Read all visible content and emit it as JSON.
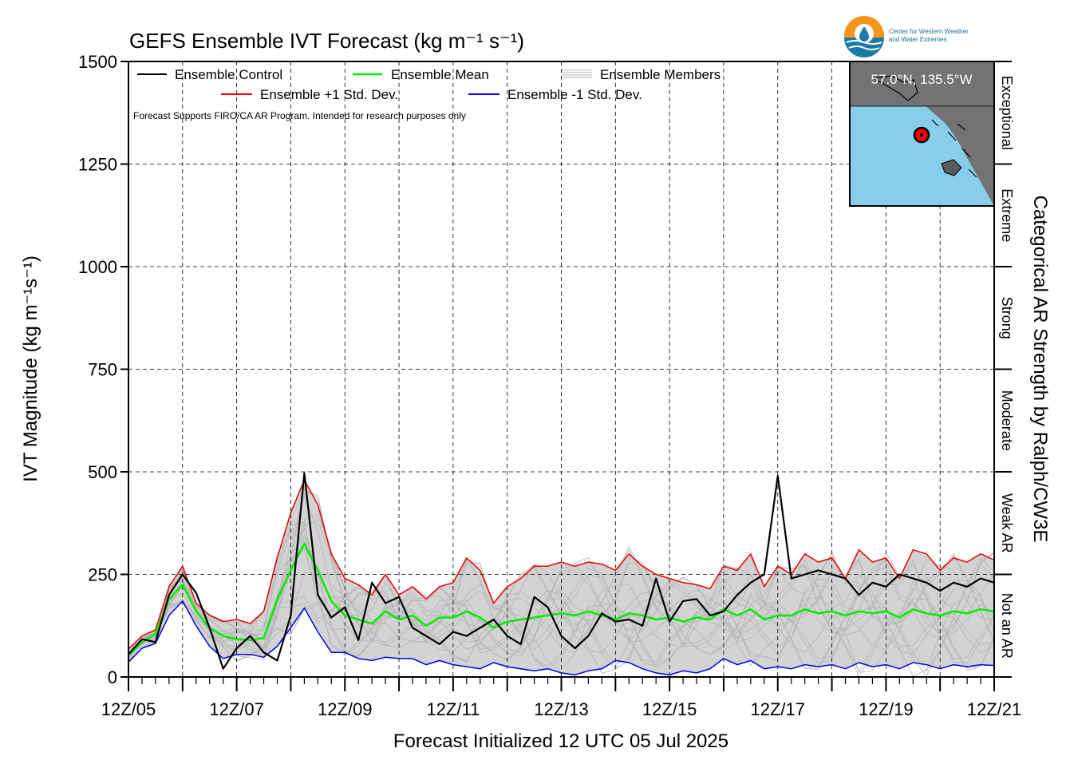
{
  "logo": {
    "line1": "Center for Western Weather",
    "line2": "and Water Extremes"
  },
  "chart_data": {
    "type": "line",
    "title": "GEFS Ensemble IVT Forecast (kg m⁻¹ s⁻¹)",
    "xlabel": "Forecast Initialized 12 UTC 05 Jul 2025",
    "ylabel": "IVT Magnitude (kg m⁻¹s⁻¹)",
    "right_label": "Categorical AR Strength by Ralph/CW3E",
    "note": "Forecast Supports FIRO/CA AR Program. Intended for research purposes only",
    "ylim": [
      0,
      1500
    ],
    "xlim": [
      0,
      16
    ],
    "y_ticks": [
      0,
      250,
      500,
      750,
      1000,
      1250,
      1500
    ],
    "x_ticks": [
      "12Z/05",
      "12Z/07",
      "12Z/09",
      "12Z/11",
      "12Z/13",
      "12Z/15",
      "12Z/17",
      "12Z/19",
      "12Z/21"
    ],
    "x_tick_days": [
      0,
      2,
      4,
      6,
      8,
      10,
      12,
      14,
      16
    ],
    "grid": true,
    "legend_placement": "top-left",
    "categories_right": [
      {
        "label": "Not an AR",
        "from": 0,
        "to": 250
      },
      {
        "label": "Weak AR",
        "from": 250,
        "to": 500
      },
      {
        "label": "Moderate",
        "from": 500,
        "to": 750
      },
      {
        "label": "Strong",
        "from": 750,
        "to": 1000
      },
      {
        "label": "Extreme",
        "from": 1000,
        "to": 1250
      },
      {
        "label": "Exceptional",
        "from": 1250,
        "to": 1500
      }
    ],
    "inset_map": {
      "label": "57.0°N, 135.5°W",
      "lat": 57.0,
      "lon": -135.5
    },
    "colors": {
      "control": "#000000",
      "mean": "#00ee00",
      "plus_std": "#ee0000",
      "minus_std": "#0000ee",
      "members": "#b4b4b4",
      "spread": "#d3d3d3",
      "ocean": "#87ceeb",
      "land": "#737373"
    },
    "x_days": [
      0,
      0.25,
      0.5,
      0.75,
      1,
      1.25,
      1.5,
      1.75,
      2,
      2.25,
      2.5,
      2.75,
      3,
      3.25,
      3.5,
      3.75,
      4,
      4.25,
      4.5,
      4.75,
      5,
      5.25,
      5.5,
      5.75,
      6,
      6.25,
      6.5,
      6.75,
      7,
      7.25,
      7.5,
      7.75,
      8,
      8.25,
      8.5,
      8.75,
      9,
      9.25,
      9.5,
      9.75,
      10,
      10.25,
      10.5,
      10.75,
      11,
      11.25,
      11.5,
      11.75,
      12,
      12.25,
      12.5,
      12.75,
      13,
      13.25,
      13.5,
      13.75,
      14,
      14.25,
      14.5,
      14.75,
      15,
      15.25,
      15.5,
      15.75,
      16
    ],
    "series": [
      {
        "name": "Ensemble +1 Std. Dev.",
        "values": [
          68,
          100,
          115,
          220,
          270,
          180,
          150,
          135,
          140,
          130,
          160,
          290,
          400,
          480,
          420,
          300,
          240,
          225,
          200,
          250,
          200,
          220,
          190,
          220,
          230,
          290,
          260,
          180,
          220,
          240,
          270,
          270,
          280,
          270,
          280,
          275,
          260,
          300,
          270,
          250,
          240,
          230,
          225,
          215,
          270,
          260,
          300,
          220,
          270,
          250,
          300,
          280,
          290,
          240,
          310,
          280,
          290,
          240,
          310,
          300,
          260,
          290,
          280,
          300,
          285
        ]
      },
      {
        "name": "Ensemble Mean",
        "values": [
          52,
          85,
          105,
          190,
          225,
          160,
          120,
          100,
          92,
          90,
          95,
          190,
          260,
          325,
          260,
          185,
          150,
          140,
          130,
          160,
          140,
          150,
          125,
          145,
          145,
          160,
          145,
          120,
          135,
          140,
          145,
          150,
          155,
          150,
          160,
          150,
          140,
          155,
          150,
          140,
          145,
          135,
          145,
          140,
          165,
          150,
          165,
          140,
          150,
          150,
          165,
          155,
          160,
          150,
          160,
          155,
          160,
          145,
          165,
          155,
          150,
          160,
          155,
          165,
          160
        ]
      },
      {
        "name": "Ensemble -1 Std. Dev.",
        "values": [
          36,
          70,
          82,
          150,
          185,
          125,
          75,
          45,
          55,
          55,
          48,
          75,
          120,
          168,
          110,
          60,
          60,
          45,
          40,
          48,
          45,
          45,
          30,
          40,
          30,
          25,
          20,
          35,
          25,
          20,
          15,
          20,
          10,
          5,
          15,
          20,
          40,
          35,
          20,
          10,
          5,
          15,
          10,
          20,
          45,
          30,
          40,
          20,
          25,
          20,
          30,
          25,
          30,
          20,
          35,
          25,
          30,
          20,
          35,
          30,
          20,
          30,
          25,
          30,
          28
        ]
      },
      {
        "name": "Ensemble Control",
        "values": [
          55,
          92,
          85,
          200,
          250,
          205,
          120,
          20,
          70,
          100,
          60,
          40,
          150,
          497,
          200,
          145,
          170,
          90,
          230,
          180,
          195,
          120,
          100,
          80,
          110,
          100,
          120,
          140,
          100,
          80,
          195,
          170,
          100,
          70,
          100,
          155,
          135,
          140,
          125,
          240,
          135,
          185,
          190,
          150,
          160,
          200,
          230,
          250,
          490,
          240,
          250,
          260,
          250,
          240,
          200,
          230,
          220,
          250,
          240,
          230,
          210,
          230,
          220,
          240,
          230
        ]
      }
    ]
  }
}
